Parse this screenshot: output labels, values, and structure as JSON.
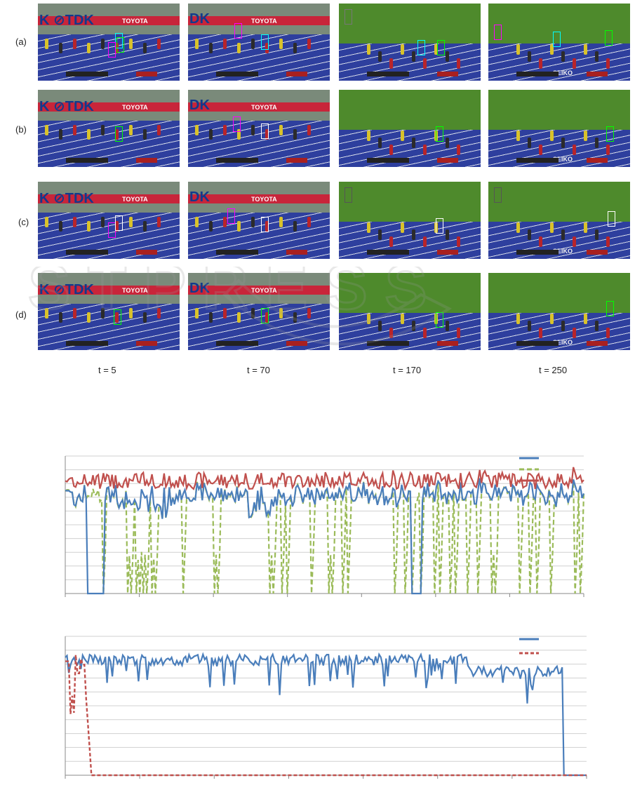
{
  "rows": [
    {
      "label": "(a)"
    },
    {
      "label": "(b)"
    },
    {
      "label": "(c)"
    },
    {
      "label": "(d)"
    }
  ],
  "time_labels": [
    "t = 5",
    "t = 70",
    "t = 170",
    "t = 250"
  ],
  "frame_texts": {
    "brand_tdk": "K ⊘TDK",
    "brand_tdk_cut": "DK",
    "brand_toyota": "TOYOTA",
    "brand_seiko": "SEIKO"
  },
  "colors": {
    "series1": "#4a7ebb",
    "series2": "#9bbb59",
    "series3": "#c0504d",
    "bottom_series1": "#4a7ebb",
    "bottom_series2": "#c0504d",
    "grid": "#d0d0d0"
  },
  "chart_data": [
    {
      "type": "line",
      "title": "",
      "xlabel": "",
      "ylabel": "",
      "legend_position": "top-right",
      "grid": true,
      "series": [
        {
          "style": "solid",
          "color": "#4a7ebb"
        },
        {
          "style": "dashed",
          "color": "#9bbb59"
        },
        {
          "style": "solid",
          "color": "#c0504d"
        }
      ]
    },
    {
      "type": "line",
      "title": "",
      "xlabel": "",
      "ylabel": "",
      "legend_position": "top-right",
      "grid": true,
      "series": [
        {
          "style": "solid",
          "color": "#4a7ebb"
        },
        {
          "style": "dashed",
          "color": "#c0504d"
        }
      ]
    }
  ]
}
